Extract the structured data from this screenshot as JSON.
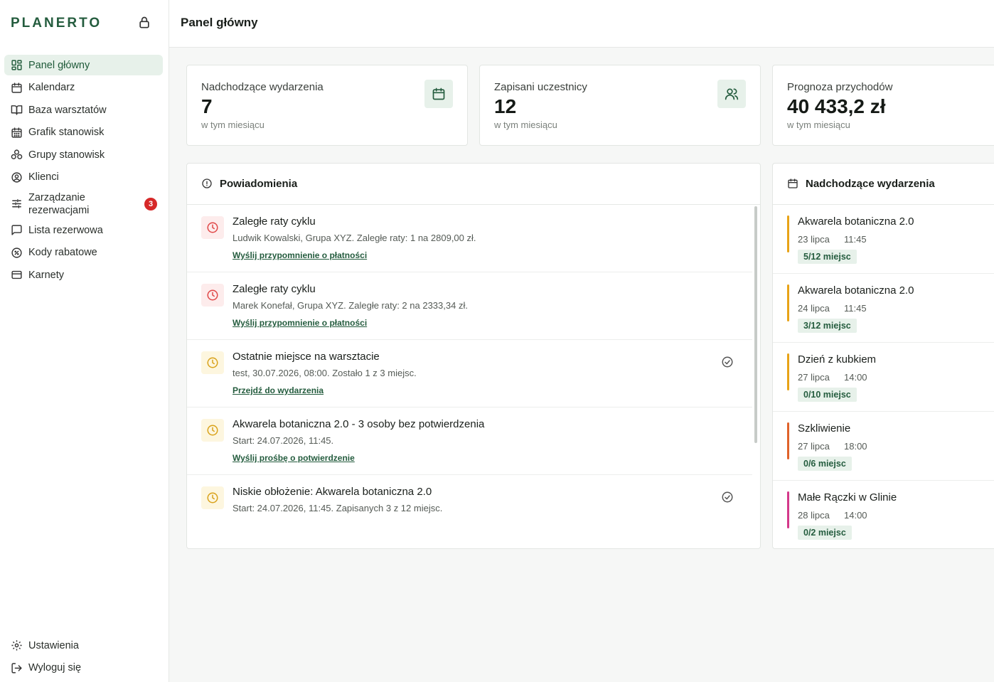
{
  "brand": {
    "name": "PLANERTO",
    "lock_icon": "lock-icon"
  },
  "header": {
    "title": "Panel główny"
  },
  "sidebar": {
    "items": [
      {
        "label": "Panel główny",
        "icon": "dashboard-icon"
      },
      {
        "label": "Kalendarz",
        "icon": "calendar-icon"
      },
      {
        "label": "Baza warsztatów",
        "icon": "book-open-icon"
      },
      {
        "label": "Grafik stanowisk",
        "icon": "calendar-grid-icon"
      },
      {
        "label": "Grupy stanowisk",
        "icon": "group-icon"
      },
      {
        "label": "Klienci",
        "icon": "user-circle-icon"
      },
      {
        "label": "Zarządzanie rezerwacjami",
        "icon": "sliders-icon",
        "badge": "3"
      },
      {
        "label": "Lista rezerwowa",
        "icon": "message-square-icon"
      },
      {
        "label": "Kody rabatowe",
        "icon": "discount-icon"
      },
      {
        "label": "Karnety",
        "icon": "credit-card-icon"
      }
    ],
    "bottom": [
      {
        "label": "Ustawienia",
        "icon": "gear-icon"
      },
      {
        "label": "Wyloguj się",
        "icon": "logout-icon"
      }
    ]
  },
  "stats": [
    {
      "label": "Nadchodzące wydarzenia",
      "value": "7",
      "sub": "w tym miesiącu",
      "icon": "calendar-icon"
    },
    {
      "label": "Zapisani uczestnicy",
      "value": "12",
      "sub": "w tym miesiącu",
      "icon": "users-icon"
    },
    {
      "label": "Prognoza przychodów",
      "value": "40 433,2 zł",
      "sub": "w tym miesiącu"
    }
  ],
  "notifications": {
    "title": "Powiadomienia",
    "items": [
      {
        "title": "Zaległe raty cyklu",
        "text": "Ludwik Kowalski, Grupa XYZ. Zaległe raty: 1 na 2809,00 zł.",
        "link": "Wyślij przypomnienie o płatności",
        "severity": "red"
      },
      {
        "title": "Zaległe raty cyklu",
        "text": "Marek Konefał, Grupa XYZ. Zaległe raty: 2 na 2333,34 zł.",
        "link": "Wyślij przypomnienie o płatności",
        "severity": "red"
      },
      {
        "title": "Ostatnie miejsce na warsztacie",
        "text": "test, 30.07.2026, 08:00. Zostało 1 z 3 miejsc.",
        "link": "Przejdź do wydarzenia",
        "severity": "yellow",
        "check": true
      },
      {
        "title": "Akwarela botaniczna 2.0 - 3 osoby bez potwierdzenia",
        "text": "Start: 24.07.2026, 11:45.",
        "link": "Wyślij prośbę o potwierdzenie",
        "severity": "yellow"
      },
      {
        "title": "Niskie obłożenie: Akwarela botaniczna 2.0",
        "text": "Start: 24.07.2026, 11:45. Zapisanych 3 z 12 miejsc.",
        "severity": "yellow",
        "check": true
      }
    ]
  },
  "events": {
    "title": "Nadchodzące wydarzenia",
    "items": [
      {
        "title": "Akwarela botaniczna 2.0",
        "date": "23 lipca",
        "time": "11:45",
        "seats": "5/12 miejsc",
        "color": "#e8a317"
      },
      {
        "title": "Akwarela botaniczna 2.0",
        "date": "24 lipca",
        "time": "11:45",
        "seats": "3/12 miejsc",
        "color": "#e8a317"
      },
      {
        "title": "Dzień z kubkiem",
        "date": "27 lipca",
        "time": "14:00",
        "seats": "0/10 miejsc",
        "color": "#e8a317"
      },
      {
        "title": "Szkliwienie",
        "date": "27 lipca",
        "time": "18:00",
        "seats": "0/6 miejsc",
        "color": "#e0622a"
      },
      {
        "title": "Małe Rączki w Glinie",
        "date": "28 lipca",
        "time": "14:00",
        "seats": "0/2 miejsc",
        "color": "#d4388a"
      }
    ]
  },
  "colors": {
    "accent": "#245c3e",
    "accent_bg": "#e7f1ea",
    "alert_red": "#e04848",
    "alert_yellow": "#d9a21b",
    "badge_red": "#d62828"
  }
}
